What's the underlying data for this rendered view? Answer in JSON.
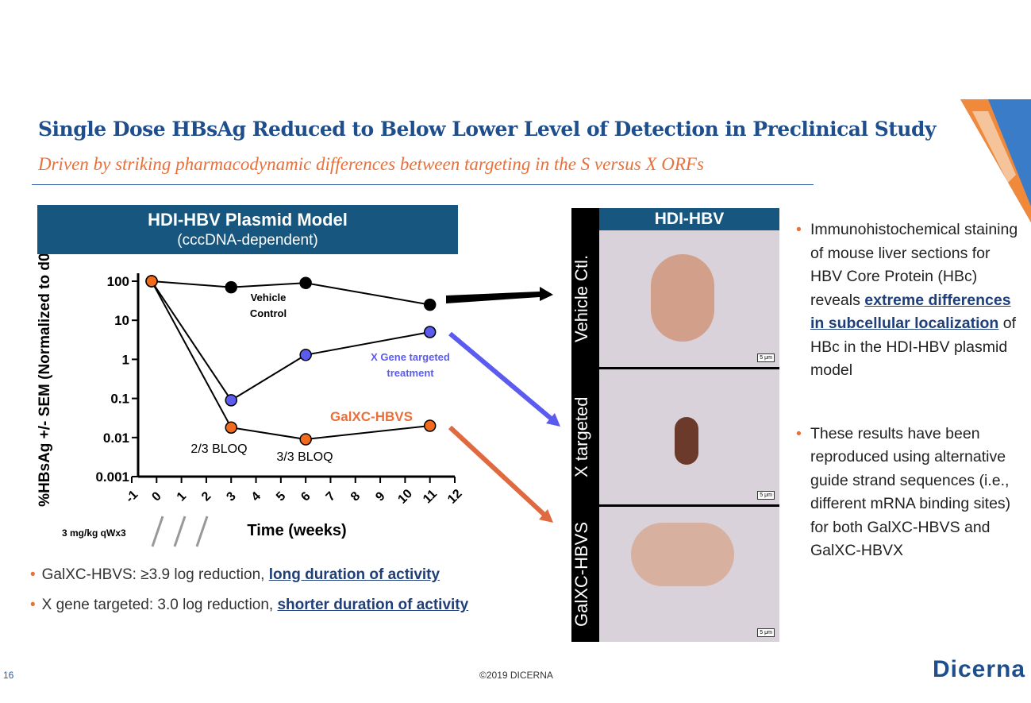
{
  "title": "Single Dose HBsAg Reduced to Below Lower Level of Detection in Preclinical Study",
  "subtitle": "Driven by striking pharmacodynamic differences between targeting in the S versus X ORFs",
  "chart_header": {
    "title": "HDI-HBV Plasmid Model",
    "subtitle": "(cccDNA-dependent)"
  },
  "chart_data": {
    "type": "line",
    "xlabel": "Time (weeks)",
    "ylabel": "%HBsAg +/- SEM (Normalized to d0)",
    "xlim": [
      -1,
      12
    ],
    "ylim": [
      0.001,
      100
    ],
    "yscale": "log",
    "xticks": [
      "-1",
      "0",
      "1",
      "2",
      "3",
      "4",
      "5",
      "6",
      "7",
      "8",
      "9",
      "10",
      "11",
      "12"
    ],
    "yticks": [
      "100",
      "10",
      "1",
      "0.1",
      "0.01",
      "0.001"
    ],
    "series": [
      {
        "name": "Vehicle Control",
        "color": "#000000",
        "x": [
          -0.2,
          3,
          6,
          11
        ],
        "y": [
          100,
          70,
          90,
          25
        ]
      },
      {
        "name": "X Gene targeted treatment",
        "color": "#5b5bf0",
        "x": [
          -0.2,
          3,
          6,
          11
        ],
        "y": [
          100,
          0.09,
          1.3,
          5
        ]
      },
      {
        "name": "GalXC-HBVS",
        "color": "#f26a1b",
        "x": [
          -0.2,
          3,
          6,
          11
        ],
        "y": [
          100,
          0.018,
          0.009,
          0.02
        ]
      }
    ],
    "annotations": [
      "Vehicle",
      "Control",
      "X Gene targeted",
      "treatment",
      "GalXC-HBVS",
      "2/3 BLOQ",
      "3/3 BLOQ"
    ],
    "dosing_label": "3 mg/kg qWx3"
  },
  "bullets_left": [
    {
      "text": "GalXC-HBVS: ≥3.9 log reduction, ",
      "emph": "long duration of activity"
    },
    {
      "text": "X gene targeted: 3.0 log reduction, ",
      "emph": "shorter duration of activity"
    }
  ],
  "image_panel": {
    "header": "HDI-HBV",
    "rows": [
      "Vehicle Ctl.",
      "X targeted",
      "GalXC-HBVS"
    ],
    "scale": "5 μm"
  },
  "right_bullets": [
    {
      "pre": "Immunohistochemical staining of mouse liver sections for HBV Core Protein (HBc) reveals ",
      "emph": "extreme differences in subcellular localization",
      "post": " of HBc in the HDI-HBV plasmid model"
    },
    {
      "pre": "These results have been reproduced using alternative guide strand sequences (i.e., different mRNA binding sites) for both GalXC-HBVS and GalXC-HBVX",
      "emph": "",
      "post": ""
    }
  ],
  "footer": {
    "page": "16",
    "copyright": "©2019 DICERNA",
    "logo": "Dicerna"
  }
}
